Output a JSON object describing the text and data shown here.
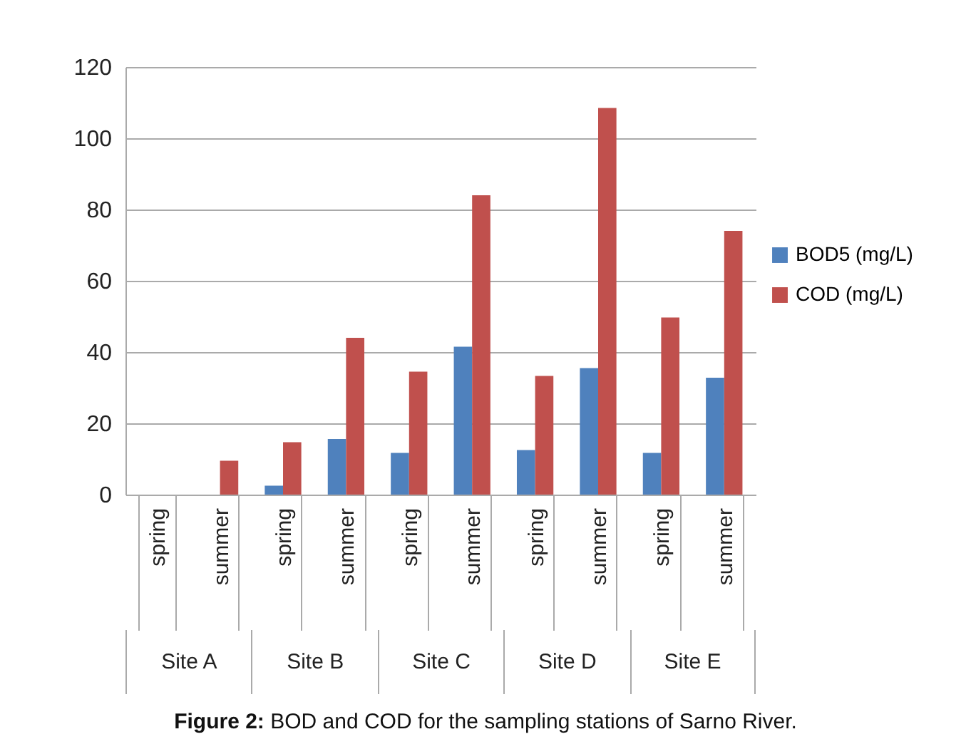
{
  "chart_data": {
    "type": "bar",
    "categories": [
      "spring",
      "summer",
      "spring",
      "summer",
      "spring",
      "summer",
      "spring",
      "summer",
      "spring",
      "summer"
    ],
    "series": [
      {
        "name": "BOD5 (mg/L)",
        "color": "#4f81bd",
        "values": [
          null,
          null,
          2.5,
          15.6,
          11.7,
          41.5,
          12.5,
          35.5,
          11.7,
          32.8
        ]
      },
      {
        "name": "COD (mg/L)",
        "color": "#c0504d",
        "values": [
          null,
          9.5,
          14.7,
          44,
          34.5,
          84,
          33.3,
          108.5,
          49.7,
          74
        ]
      }
    ],
    "ylim": [
      0,
      120
    ],
    "yticks": [
      0,
      20,
      40,
      60,
      80,
      100,
      120
    ],
    "grid": "y",
    "legend": "right",
    "annotations": [
      "Site A",
      "Site B",
      "Site C",
      "Site D",
      "Site E",
      "Figure 2: BOD and COD for the sampling stations of Sarno River."
    ]
  }
}
